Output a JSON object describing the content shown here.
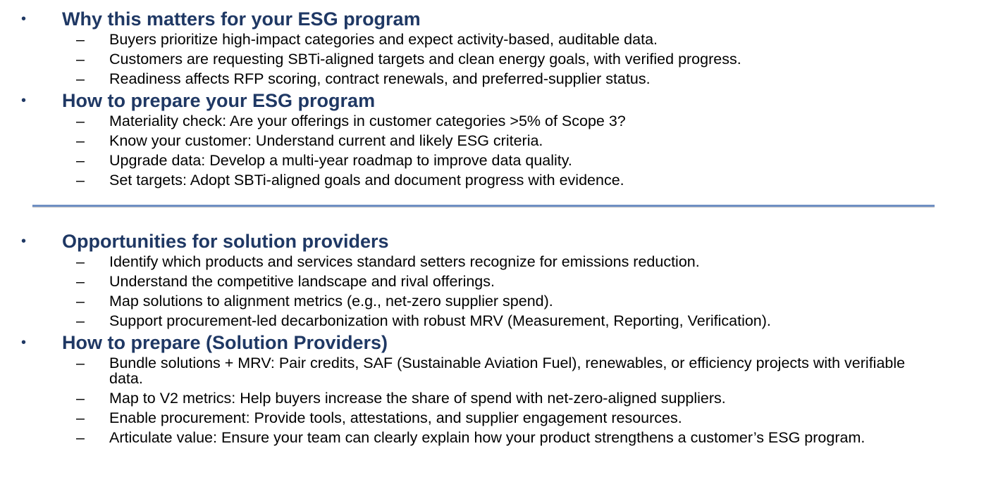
{
  "sections": [
    {
      "heading": "Why this matters for your ESG program",
      "items": [
        "Buyers prioritize high-impact categories and expect activity-based, auditable data.",
        "Customers are requesting SBTi-aligned targets and clean energy goals, with verified progress.",
        "Readiness affects RFP scoring, contract renewals, and preferred-supplier status."
      ]
    },
    {
      "heading": "How to prepare your ESG program",
      "items": [
        "Materiality check: Are your offerings in customer categories >5% of Scope 3?",
        "Know your customer: Understand current and likely ESG criteria.",
        "Upgrade data: Develop a multi-year roadmap to improve data quality.",
        "Set targets: Adopt SBTi-aligned goals and document progress with evidence."
      ]
    },
    {
      "heading": "Opportunities for solution providers",
      "items": [
        "Identify which products and services standard setters recognize for emissions reduction.",
        "Understand the competitive landscape and rival offerings.",
        "Map solutions to alignment metrics (e.g., net-zero supplier spend).",
        "Support procurement-led decarbonization with robust MRV (Measurement, Reporting, Verification)."
      ]
    },
    {
      "heading": "How to prepare (Solution Providers)",
      "items": [
        "Bundle solutions + MRV: Pair credits, SAF (Sustainable Aviation Fuel), renewables, or efficiency projects with verifiable data.",
        "Map to V2 metrics: Help buyers increase the share of spend with net-zero-aligned suppliers.",
        "Enable procurement: Provide tools, attestations, and supplier engagement resources.",
        "Articulate value: Ensure your team can clearly explain how your product strengthens a customer’s ESG program."
      ]
    }
  ],
  "symbols": {
    "bullet": "•",
    "dash": "–"
  },
  "colors": {
    "heading": "#1f3864",
    "divider": "#6f8fc3",
    "body_text": "#000000"
  }
}
